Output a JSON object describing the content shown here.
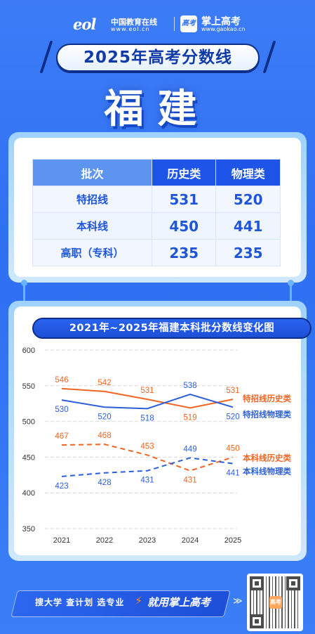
{
  "header": {
    "eol_mark": "eol",
    "eol_cn": "中国教育在线",
    "eol_url": "www.eol.cn",
    "gk_icon": "高考",
    "gk_name": "掌上高考",
    "gk_url": "www.gaokao.cn",
    "title": "2025年高考分数线",
    "province": "福建"
  },
  "table": {
    "headers": [
      "批次",
      "历史类",
      "物理类"
    ],
    "rows": [
      {
        "label": "特招线",
        "history": "531",
        "physics": "520"
      },
      {
        "label": "本科线",
        "history": "450",
        "physics": "441"
      },
      {
        "label": "高职（专科）",
        "history": "235",
        "physics": "235"
      }
    ]
  },
  "chart_data": {
    "type": "line",
    "title": "2021年~2025年福建本科批分数线变化图",
    "categories": [
      "2021",
      "2022",
      "2023",
      "2024",
      "2025"
    ],
    "ylim": [
      350,
      600
    ],
    "yticks": [
      350,
      400,
      450,
      500,
      550,
      600
    ],
    "grid": true,
    "series": [
      {
        "name": "特招线历史类",
        "values": [
          546,
          542,
          531,
          519,
          531
        ],
        "color": "#f26522",
        "dashed": false
      },
      {
        "name": "特招线物理类",
        "values": [
          530,
          520,
          518,
          538,
          520
        ],
        "color": "#2b5fd9",
        "dashed": false
      },
      {
        "name": "本科线历史类",
        "values": [
          467,
          468,
          453,
          431,
          450
        ],
        "color": "#f26522",
        "dashed": true
      },
      {
        "name": "本科线物理类",
        "values": [
          423,
          428,
          431,
          449,
          441
        ],
        "color": "#2b5fd9",
        "dashed": true
      }
    ]
  },
  "footer": {
    "slogan": "搜大学  查计划  选专业",
    "highlight": "就用掌上高考",
    "arrows": "≫",
    "qr_center": "高考"
  }
}
